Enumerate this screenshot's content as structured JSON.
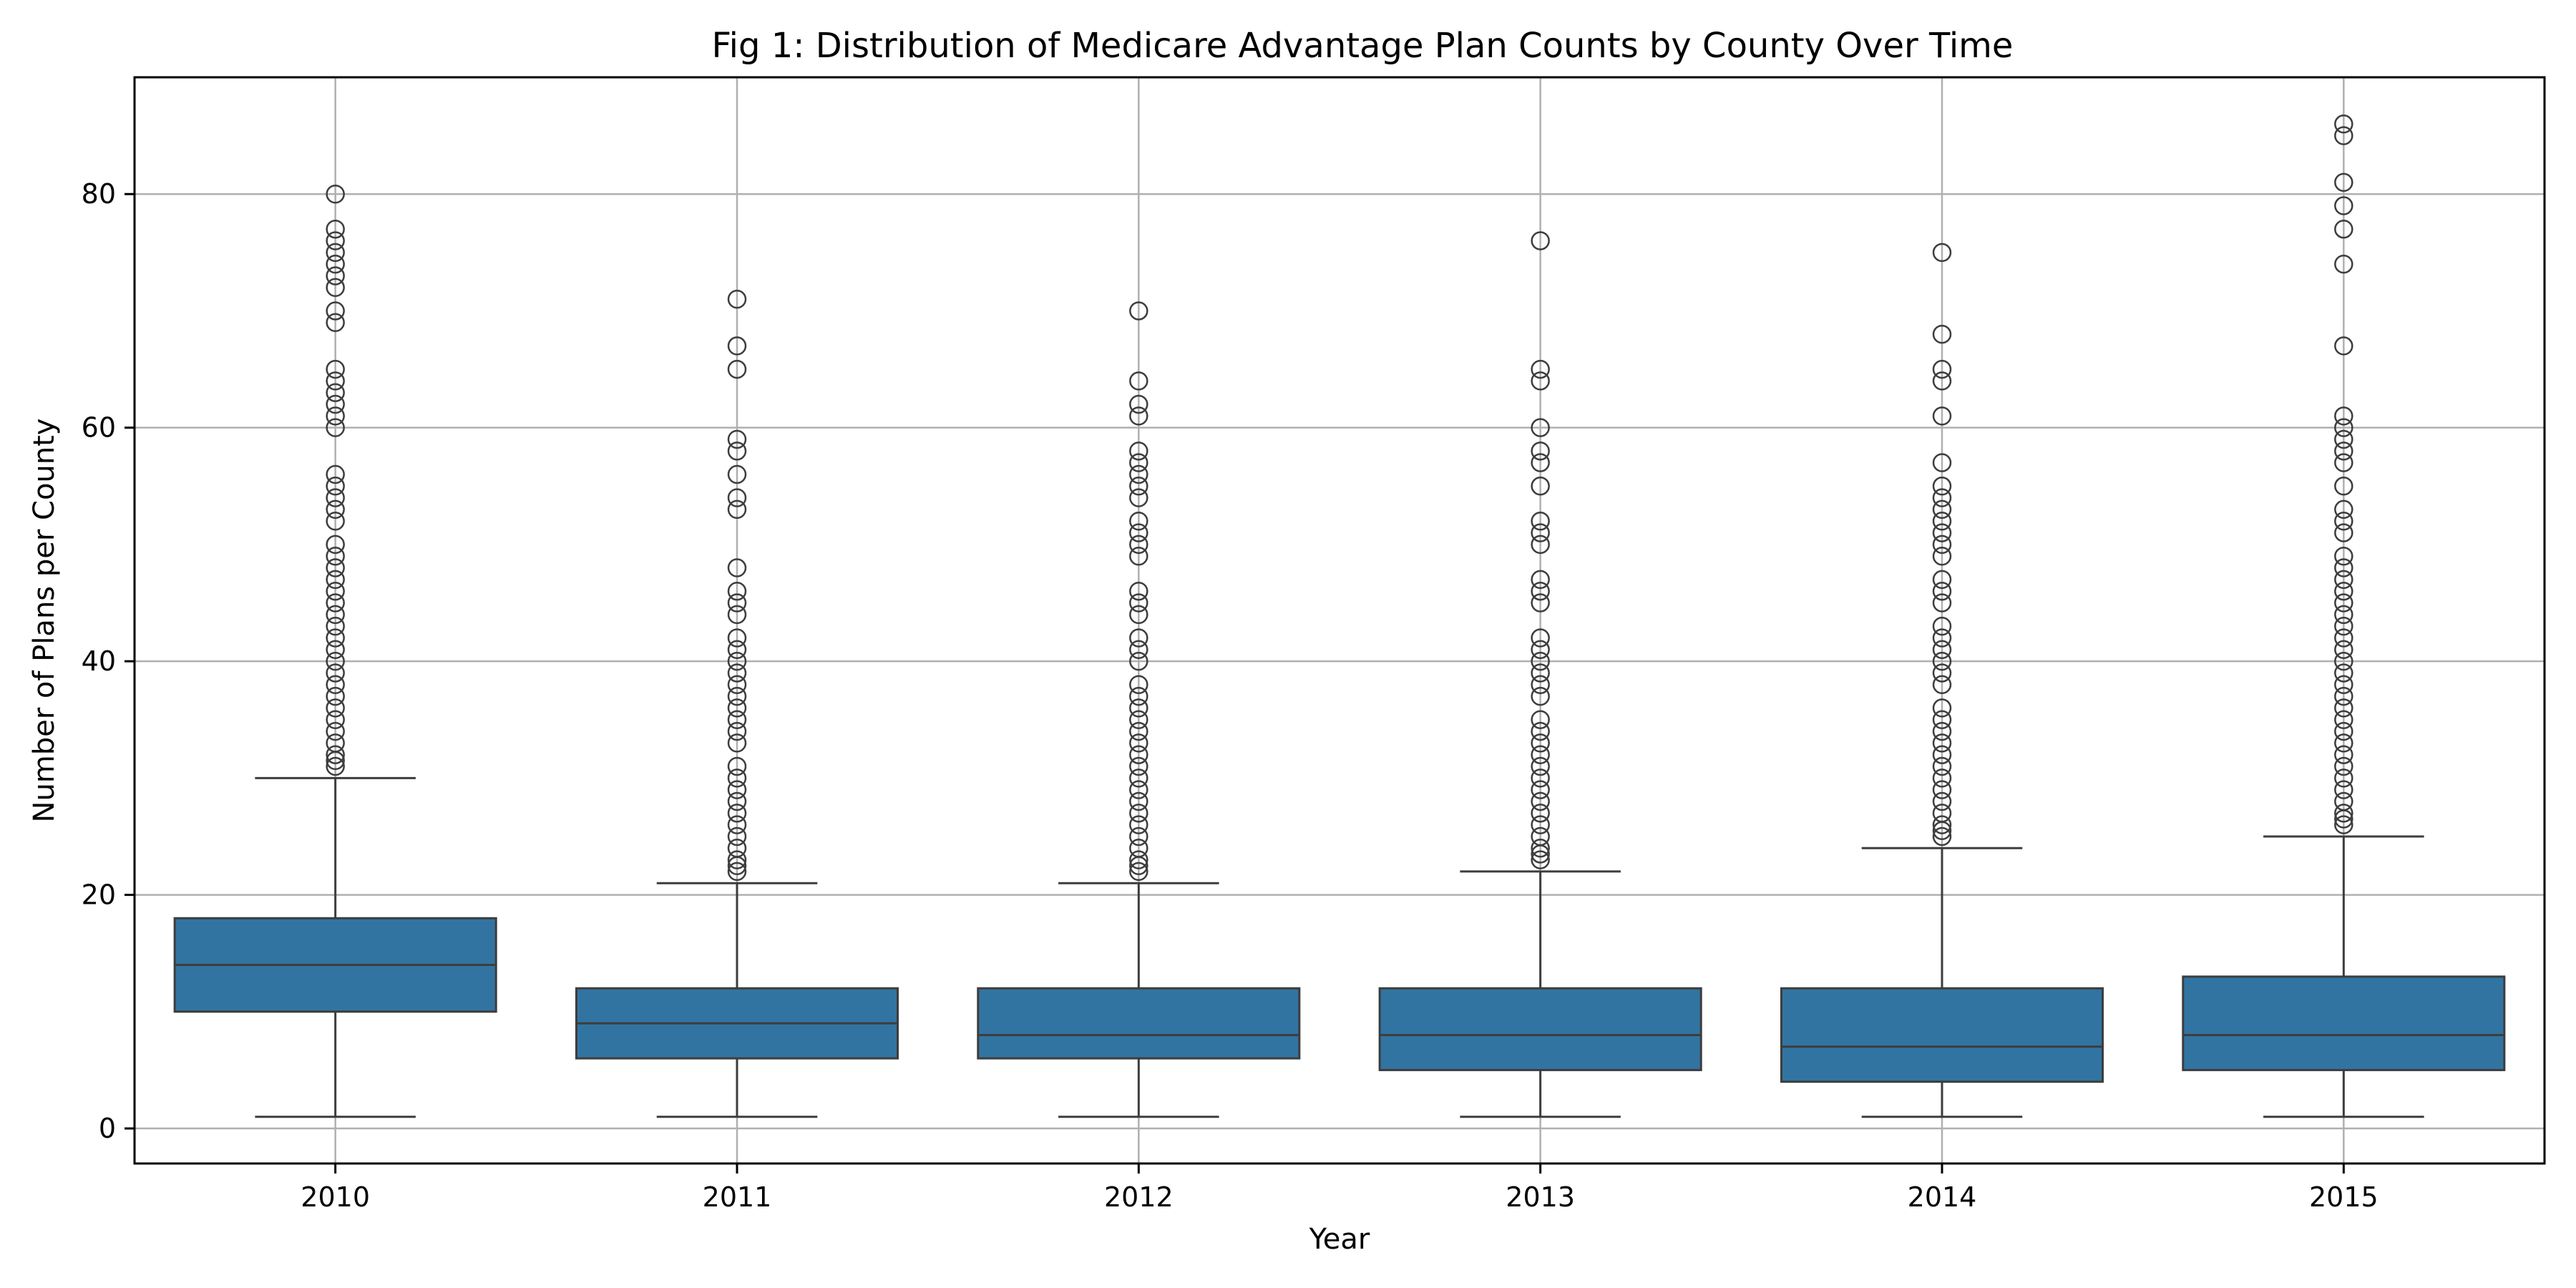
{
  "chart_data": {
    "type": "box",
    "title": "Fig 1: Distribution of Medicare Advantage Plan Counts by County Over Time",
    "xlabel": "Year",
    "ylabel": "Number of Plans per County",
    "ylim": [
      -3,
      90
    ],
    "yticks": [
      0,
      20,
      40,
      60,
      80
    ],
    "grid": true,
    "colors": {
      "box_fill": "#3274a1",
      "line": "#3d3d3d",
      "grid": "#b0b0b0"
    },
    "categories": [
      "2010",
      "2011",
      "2012",
      "2013",
      "2014",
      "2015"
    ],
    "series": [
      {
        "category": "2010",
        "whisker_low": 1,
        "q1": 10,
        "median": 14,
        "q3": 18,
        "whisker_high": 30,
        "outliers": [
          31,
          31.5,
          32,
          33,
          34,
          35,
          36,
          37,
          38,
          39,
          40,
          41,
          42,
          43,
          44,
          45,
          46,
          47,
          48,
          49,
          50,
          52,
          53,
          54,
          55,
          56,
          60,
          61,
          62,
          63,
          64,
          65,
          69,
          70,
          72,
          73,
          74,
          75,
          76,
          77,
          80
        ]
      },
      {
        "category": "2011",
        "whisker_low": 1,
        "q1": 6,
        "median": 9,
        "q3": 12,
        "whisker_high": 21,
        "outliers": [
          22,
          22.5,
          23,
          24,
          25,
          26,
          27,
          28,
          29,
          30,
          31,
          33,
          34,
          35,
          36,
          37,
          38,
          39,
          40,
          41,
          42,
          44,
          45,
          46,
          48,
          53,
          54,
          56,
          58,
          59,
          65,
          67,
          71
        ]
      },
      {
        "category": "2012",
        "whisker_low": 1,
        "q1": 6,
        "median": 8,
        "q3": 12,
        "whisker_high": 21,
        "outliers": [
          22,
          22.5,
          23,
          24,
          25,
          26,
          27,
          28,
          29,
          30,
          31,
          32,
          33,
          34,
          35,
          36,
          37,
          38,
          40,
          41,
          42,
          44,
          45,
          46,
          49,
          50,
          51,
          52,
          54,
          55,
          56,
          57,
          58,
          61,
          62,
          64,
          70
        ]
      },
      {
        "category": "2013",
        "whisker_low": 1,
        "q1": 5,
        "median": 8,
        "q3": 12,
        "whisker_high": 22,
        "outliers": [
          23,
          23.5,
          24,
          25,
          26,
          27,
          28,
          29,
          30,
          31,
          32,
          33,
          34,
          35,
          37,
          38,
          39,
          40,
          41,
          42,
          45,
          46,
          47,
          50,
          51,
          52,
          55,
          57,
          58,
          60,
          64,
          65,
          76
        ]
      },
      {
        "category": "2014",
        "whisker_low": 1,
        "q1": 4,
        "median": 7,
        "q3": 12,
        "whisker_high": 24,
        "outliers": [
          25,
          25.5,
          26,
          27,
          28,
          29,
          30,
          31,
          32,
          33,
          34,
          35,
          36,
          38,
          39,
          40,
          41,
          42,
          43,
          45,
          46,
          47,
          49,
          50,
          51,
          52,
          53,
          54,
          55,
          57,
          61,
          64,
          65,
          68,
          75
        ]
      },
      {
        "category": "2015",
        "whisker_low": 1,
        "q1": 5,
        "median": 8,
        "q3": 13,
        "whisker_high": 25,
        "outliers": [
          26,
          26.5,
          27,
          28,
          29,
          30,
          31,
          32,
          33,
          34,
          35,
          36,
          37,
          38,
          39,
          40,
          41,
          42,
          43,
          44,
          45,
          46,
          47,
          48,
          49,
          51,
          52,
          53,
          55,
          57,
          58,
          59,
          60,
          61,
          67,
          74,
          77,
          79,
          81,
          85,
          86
        ]
      }
    ]
  }
}
